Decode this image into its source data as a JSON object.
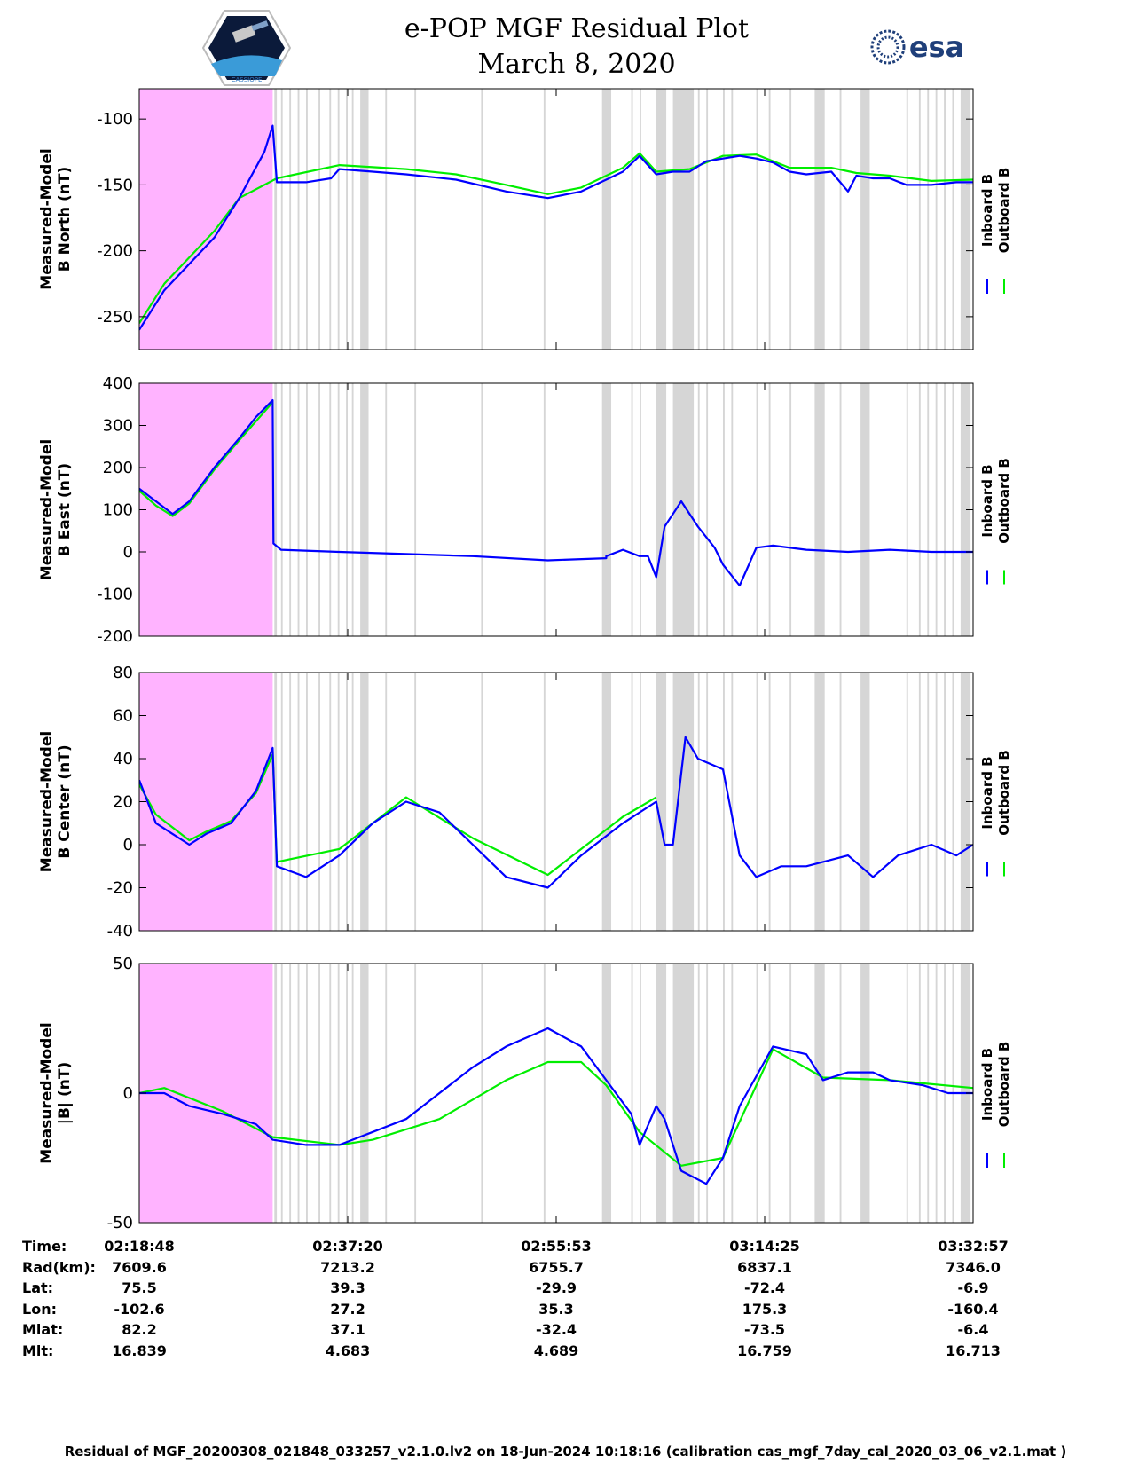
{
  "header": {
    "title_line1": "e-POP MGF Residual Plot",
    "title_line2": "March 8, 2020",
    "logo_left_text": "CASSIOPE",
    "logo_right_text": "esa"
  },
  "colors": {
    "inboard": "#0000ff",
    "outboard": "#00ee00",
    "highlight": "#ffb3ff",
    "gap": "#d6d6d6"
  },
  "chart_data": [
    {
      "type": "line",
      "ylabel": "Measured-Model",
      "ylabel2": "B North (nT)",
      "yticks": [
        -100,
        -150,
        -200,
        -250
      ],
      "ylim": [
        -275,
        -77
      ],
      "legend": [
        "Inboard B",
        "Outboard B"
      ],
      "series": [
        {
          "name": "Inboard B",
          "x": [
            0.0,
            0.01,
            0.03,
            0.06,
            0.09,
            0.12,
            0.15,
            0.16,
            0.165,
            0.2,
            0.23,
            0.24,
            0.28,
            0.32,
            0.38,
            0.44,
            0.49,
            0.53,
            0.56,
            0.58,
            0.6,
            0.62,
            0.64,
            0.66,
            0.68,
            0.7,
            0.72,
            0.74,
            0.76,
            0.78,
            0.8,
            0.83,
            0.85,
            0.86,
            0.88,
            0.9,
            0.92,
            0.95,
            0.98,
            1.0
          ],
          "y": [
            -260,
            -250,
            -230,
            -210,
            -190,
            -160,
            -125,
            -105,
            -148,
            -148,
            -145,
            -138,
            -140,
            -142,
            -146,
            -155,
            -160,
            -155,
            -146,
            -140,
            -128,
            -142,
            -140,
            -140,
            -132,
            -130,
            -128,
            -130,
            -133,
            -140,
            -142,
            -140,
            -155,
            -143,
            -145,
            -145,
            -150,
            -150,
            -148,
            -148
          ]
        },
        {
          "name": "Outboard B",
          "x": [
            0.0,
            0.03,
            0.06,
            0.09,
            0.12,
            0.165,
            0.24,
            0.32,
            0.38,
            0.44,
            0.49,
            0.53,
            0.56,
            0.58,
            0.6,
            0.62,
            0.66,
            0.7,
            0.74,
            0.78,
            0.83,
            0.86,
            0.9,
            0.95,
            1.0
          ],
          "y": [
            -255,
            -225,
            -205,
            -185,
            -160,
            -145,
            -135,
            -138,
            -142,
            -150,
            -157,
            -152,
            -143,
            -137,
            -126,
            -140,
            -138,
            -128,
            -127,
            -137,
            -137,
            -141,
            -143,
            -147,
            -146
          ]
        }
      ]
    },
    {
      "type": "line",
      "ylabel": "Measured-Model",
      "ylabel2": "B East (nT)",
      "yticks": [
        400,
        300,
        200,
        100,
        0,
        -100,
        -200
      ],
      "ylim": [
        -200,
        400
      ],
      "legend": [
        "Inboard B",
        "Outboard B"
      ],
      "series": [
        {
          "name": "Inboard B",
          "x": [
            0.0,
            0.02,
            0.04,
            0.06,
            0.09,
            0.12,
            0.14,
            0.16,
            0.161,
            0.17,
            0.24,
            0.32,
            0.4,
            0.49,
            0.56,
            0.56,
            0.58,
            0.6,
            0.61,
            0.62,
            0.63,
            0.64,
            0.65,
            0.67,
            0.69,
            0.7,
            0.72,
            0.74,
            0.76,
            0.8,
            0.85,
            0.9,
            0.95,
            1.0
          ],
          "y": [
            150,
            120,
            90,
            120,
            200,
            270,
            320,
            360,
            20,
            5,
            0,
            -5,
            -10,
            -20,
            -15,
            -10,
            5,
            -10,
            -10,
            -60,
            60,
            90,
            120,
            60,
            10,
            -30,
            -80,
            10,
            15,
            5,
            0,
            5,
            0,
            0
          ]
        },
        {
          "name": "Outboard B",
          "x": [
            0.0,
            0.02,
            0.04,
            0.06,
            0.09,
            0.12,
            0.16
          ],
          "y": [
            145,
            110,
            85,
            115,
            195,
            265,
            355
          ]
        }
      ]
    },
    {
      "type": "line",
      "ylabel": "Measured-Model",
      "ylabel2": "B Center (nT)",
      "yticks": [
        80,
        60,
        40,
        20,
        0,
        -20,
        -40
      ],
      "ylim": [
        -40,
        80
      ],
      "legend": [
        "Inboard B",
        "Outboard B"
      ],
      "series": [
        {
          "name": "Inboard B",
          "x": [
            0.0,
            0.02,
            0.04,
            0.06,
            0.08,
            0.11,
            0.14,
            0.16,
            0.165,
            0.2,
            0.24,
            0.28,
            0.32,
            0.36,
            0.4,
            0.44,
            0.49,
            0.53,
            0.58,
            0.62,
            0.63,
            0.64,
            0.655,
            0.67,
            0.7,
            0.72,
            0.74,
            0.77,
            0.8,
            0.85,
            0.88,
            0.91,
            0.95,
            0.98,
            1.0
          ],
          "y": [
            30,
            10,
            5,
            0,
            5,
            10,
            25,
            45,
            -10,
            -15,
            -5,
            10,
            20,
            15,
            0,
            -15,
            -20,
            -5,
            10,
            20,
            0,
            0,
            50,
            40,
            35,
            -5,
            -15,
            -10,
            -10,
            -5,
            -15,
            -5,
            0,
            -5,
            0
          ]
        },
        {
          "name": "Outboard B",
          "x": [
            0.0,
            0.02,
            0.04,
            0.06,
            0.08,
            0.11,
            0.14,
            0.16,
            0.165,
            0.24,
            0.32,
            0.4,
            0.49,
            0.58,
            0.62
          ],
          "y": [
            28,
            14,
            8,
            2,
            6,
            11,
            24,
            42,
            -8,
            -2,
            22,
            3,
            -14,
            13,
            22
          ]
        }
      ]
    },
    {
      "type": "line",
      "ylabel": "Measured-Model",
      "ylabel2": "|B| (nT)",
      "yticks": [
        50,
        0,
        -50
      ],
      "ylim": [
        -50,
        50
      ],
      "legend": [
        "Inboard B",
        "Outboard B"
      ],
      "series": [
        {
          "name": "Inboard B",
          "x": [
            0.0,
            0.03,
            0.06,
            0.1,
            0.14,
            0.16,
            0.2,
            0.24,
            0.28,
            0.32,
            0.36,
            0.4,
            0.44,
            0.49,
            0.53,
            0.56,
            0.59,
            0.6,
            0.62,
            0.63,
            0.65,
            0.68,
            0.7,
            0.72,
            0.76,
            0.8,
            0.82,
            0.85,
            0.88,
            0.9,
            0.94,
            0.97,
            1.0
          ],
          "y": [
            0,
            0,
            -5,
            -8,
            -12,
            -18,
            -20,
            -20,
            -15,
            -10,
            0,
            10,
            18,
            25,
            18,
            5,
            -8,
            -20,
            -5,
            -10,
            -30,
            -35,
            -25,
            -5,
            18,
            15,
            5,
            8,
            8,
            5,
            3,
            0,
            0
          ]
        },
        {
          "name": "Outboard B",
          "x": [
            0.0,
            0.03,
            0.1,
            0.16,
            0.24,
            0.28,
            0.36,
            0.44,
            0.49,
            0.53,
            0.56,
            0.6,
            0.65,
            0.7,
            0.76,
            0.82,
            0.9,
            1.0
          ],
          "y": [
            0,
            2,
            -7,
            -17,
            -20,
            -18,
            -10,
            5,
            12,
            12,
            3,
            -15,
            -28,
            -25,
            17,
            6,
            5,
            2
          ]
        }
      ]
    }
  ],
  "footer": {
    "rows": [
      {
        "label": "Time:",
        "values": [
          "02:18:48",
          "02:37:20",
          "02:55:53",
          "03:14:25",
          "03:32:57"
        ]
      },
      {
        "label": "Rad(km):",
        "values": [
          "7609.6",
          "7213.2",
          "6755.7",
          "6837.1",
          "7346.0"
        ]
      },
      {
        "label": "Lat:",
        "values": [
          "75.5",
          "39.3",
          "-29.9",
          "-72.4",
          "-6.9"
        ]
      },
      {
        "label": "Lon:",
        "values": [
          "-102.6",
          "27.2",
          "35.3",
          "175.3",
          "-160.4"
        ]
      },
      {
        "label": "Mlat:",
        "values": [
          "82.2",
          "37.1",
          "-32.4",
          "-73.5",
          "-6.4"
        ]
      },
      {
        "label": "Mlt:",
        "values": [
          "16.839",
          "4.683",
          "4.689",
          "16.759",
          "16.713"
        ]
      }
    ],
    "note": "Residual of MGF_20200308_021848_033257_v2.1.0.lv2 on 18-Jun-2024 10:18:16 (calibration cas_mgf_7day_cal_2020_03_06_v2.1.mat )"
  }
}
